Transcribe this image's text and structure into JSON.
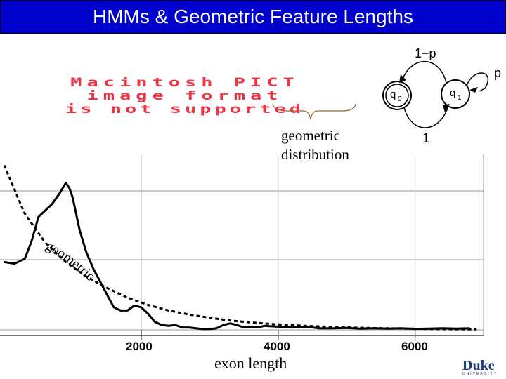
{
  "slide": {
    "title": "HMMs & Geometric Feature Lengths",
    "title_bg": "#0000cc",
    "title_color": "#ffffff"
  },
  "pict_placeholder": {
    "lines": [
      "Macintosh PICT",
      "image format",
      "is not supported"
    ],
    "color": "#ee3344"
  },
  "annotation": {
    "line1": "geometric",
    "line2": "distribution"
  },
  "state_diagram": {
    "label_one_minus_p": "1−p",
    "label_p": "p",
    "label_one": "1",
    "state_q0": "q",
    "state_q0_sub": "0",
    "state_q1": "q",
    "state_q1_sub": "1"
  },
  "chart_data": {
    "type": "line",
    "xlabel": "exon length",
    "x_ticks": [
      "2000",
      "4000",
      "6000"
    ],
    "xlim": [
      0,
      7000
    ],
    "grid": true,
    "curve_label": "geometric",
    "series": [
      {
        "style": "solid",
        "x": [
          0,
          150,
          300,
          400,
          500,
          600,
          700,
          800,
          900,
          950,
          1000,
          1050,
          1100,
          1200,
          1300,
          1400,
          1500,
          1600,
          1700,
          1800,
          1900,
          2000,
          2100,
          2200,
          2300,
          2400,
          2500,
          2600,
          2700,
          2800,
          2900,
          3000,
          3100,
          3200,
          3300,
          3400,
          3500,
          3600,
          3700,
          3800,
          4000,
          4200,
          4400,
          4600,
          4800,
          5000,
          5200,
          5400,
          5600,
          5800,
          6000,
          6200,
          6400,
          6600,
          6800
        ],
        "y": [
          0.42,
          0.41,
          0.44,
          0.55,
          0.7,
          0.74,
          0.78,
          0.84,
          0.91,
          0.88,
          0.82,
          0.72,
          0.62,
          0.48,
          0.38,
          0.3,
          0.22,
          0.14,
          0.12,
          0.12,
          0.15,
          0.14,
          0.1,
          0.05,
          0.03,
          0.025,
          0.03,
          0.015,
          0.015,
          0.01,
          0.005,
          0.005,
          0.01,
          0.03,
          0.04,
          0.03,
          0.015,
          0.02,
          0.015,
          0.025,
          0.02,
          0.015,
          0.02,
          0.01,
          0.01,
          0.012,
          0.008,
          0.01,
          0.008,
          0.01,
          0.006,
          0.008,
          0.01,
          0.008,
          0.01
        ]
      },
      {
        "style": "dashed",
        "x": [
          0,
          300,
          600,
          900,
          1200,
          1500,
          1800,
          2100,
          2400,
          2700,
          3000,
          3300,
          3600,
          3900,
          4200,
          4500,
          4800,
          5100,
          5400,
          5700,
          6000,
          6300,
          6600,
          6900
        ],
        "y": [
          1.02,
          0.72,
          0.54,
          0.42,
          0.33,
          0.26,
          0.2,
          0.155,
          0.12,
          0.095,
          0.075,
          0.058,
          0.046,
          0.036,
          0.029,
          0.023,
          0.018,
          0.014,
          0.011,
          0.009,
          0.007,
          0.005,
          0.004,
          0.003
        ]
      }
    ]
  },
  "logo": {
    "text": "Duke",
    "subtext": "UNIVERSITY"
  }
}
